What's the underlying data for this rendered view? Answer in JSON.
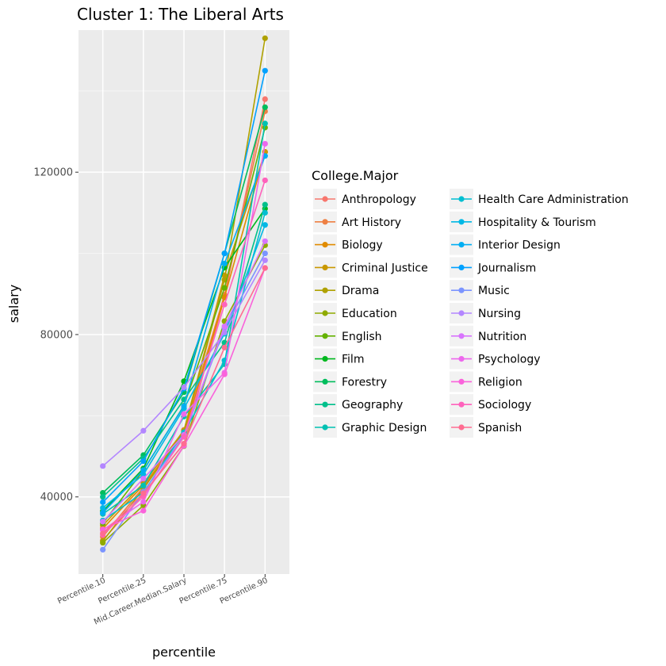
{
  "chart_data": {
    "type": "line",
    "title": "Cluster 1:  The Liberal Arts",
    "xlabel": "percentile",
    "ylabel": "salary",
    "categories": [
      "Percentile.10",
      "Percentile.25",
      "Mid.Career.Median.Salary",
      "Percentile.75",
      "Percentile.90"
    ],
    "ylim": [
      21000,
      155000
    ],
    "yticks": [
      40000,
      80000,
      120000
    ],
    "ytick_labels": [
      "40000",
      "80000",
      "120000"
    ],
    "grid": true,
    "legend": {
      "title": "College.Major",
      "placement": "right",
      "columns": 2
    },
    "colors": {
      "panel": "#ebebeb",
      "grid_major": "#ffffff",
      "grid_minor": "#f5f5f5"
    },
    "series": [
      {
        "name": "Anthropology",
        "color": "#F8766D",
        "values": [
          29300,
          40800,
          53100,
          89100,
          138000
        ]
      },
      {
        "name": "Art History",
        "color": "#EE8043",
        "values": [
          30200,
          42400,
          56500,
          89800,
          135000
        ]
      },
      {
        "name": "Biology",
        "color": "#E08B00",
        "values": [
          32200,
          42900,
          55400,
          89200,
          125000
        ]
      },
      {
        "name": "Criminal Justice",
        "color": "#C99800",
        "values": [
          33000,
          43400,
          56300,
          94600,
          125000
        ]
      },
      {
        "name": "Drama",
        "color": "#AFA100",
        "values": [
          29100,
          42000,
          56100,
          93500,
          153000
        ]
      },
      {
        "name": "Education",
        "color": "#8FAA00",
        "values": [
          28700,
          37900,
          52500,
          83300,
          102000
        ]
      },
      {
        "name": "English",
        "color": "#64B200",
        "values": [
          33500,
          46500,
          62500,
          91500,
          131000
        ]
      },
      {
        "name": "Film",
        "color": "#00B81F",
        "values": [
          36500,
          47000,
          68500,
          96500,
          111000
        ]
      },
      {
        "name": "Forestry",
        "color": "#00BD5C",
        "values": [
          41000,
          50300,
          65800,
          100000,
          136000
        ]
      },
      {
        "name": "Geography",
        "color": "#00C08B",
        "values": [
          40000,
          49500,
          64000,
          78000,
          112000
        ]
      },
      {
        "name": "Graphic Design",
        "color": "#00C1B2",
        "values": [
          35800,
          42800,
          59800,
          72700,
          132000
        ]
      },
      {
        "name": "Health Care Administration",
        "color": "#00BED1",
        "values": [
          34200,
          41100,
          55900,
          73600,
          110000
        ]
      },
      {
        "name": "Hospitality & Tourism",
        "color": "#00B8E5",
        "values": [
          37300,
          45500,
          61800,
          80200,
          107000
        ]
      },
      {
        "name": "Interior Design",
        "color": "#00AEF3",
        "values": [
          36100,
          46600,
          62400,
          97500,
          124000
        ]
      },
      {
        "name": "Journalism",
        "color": "#00A1FF",
        "values": [
          38700,
          48800,
          66700,
          100000,
          145000
        ]
      },
      {
        "name": "Music",
        "color": "#7B94FF",
        "values": [
          27000,
          41300,
          55000,
          81500,
          100000
        ]
      },
      {
        "name": "Nursing",
        "color": "#B386FF",
        "values": [
          47600,
          56300,
          67000,
          80500,
          98300
        ]
      },
      {
        "name": "Nutrition",
        "color": "#D874FD",
        "values": [
          33900,
          44500,
          55300,
          82000,
          103000
        ]
      },
      {
        "name": "Psychology",
        "color": "#ED68ED",
        "values": [
          31800,
          38800,
          60400,
          70600,
          127000
        ]
      },
      {
        "name": "Religion",
        "color": "#FA62DB",
        "values": [
          32000,
          36600,
          52600,
          70200,
          96400
        ]
      },
      {
        "name": "Sociology",
        "color": "#FF62BC",
        "values": [
          30700,
          40100,
          54800,
          87400,
          118000
        ]
      },
      {
        "name": "Spanish",
        "color": "#FF6C91",
        "values": [
          31000,
          40900,
          53100,
          76800,
          96400
        ]
      }
    ]
  }
}
